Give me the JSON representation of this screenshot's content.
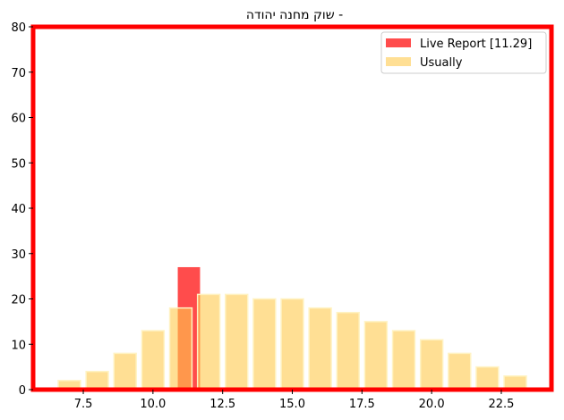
{
  "chart_data": {
    "type": "bar",
    "title": "שוק מחנה יהודה -",
    "xlabel": "",
    "ylabel": "",
    "xlim": [
      5.7,
      24.3
    ],
    "ylim": [
      0,
      80
    ],
    "x_ticks": [
      7.5,
      10.0,
      12.5,
      15.0,
      17.5,
      20.0,
      22.5
    ],
    "x_tick_labels": [
      "7.5",
      "10.0",
      "12.5",
      "15.0",
      "17.5",
      "20.0",
      "22.5"
    ],
    "y_ticks": [
      0,
      10,
      20,
      30,
      40,
      50,
      60,
      70,
      80
    ],
    "y_tick_labels": [
      "0",
      "10",
      "20",
      "30",
      "40",
      "50",
      "60",
      "70",
      "80"
    ],
    "legend_position": "top-right",
    "grid": false,
    "series": [
      {
        "name": "Live Report [11.29]",
        "color": "#ff0000",
        "opacity": 0.7,
        "bar_width": 0.8,
        "x": [
          11.29
        ],
        "values": [
          27
        ]
      },
      {
        "name": "Usually",
        "color": "#ffc94d",
        "opacity": 0.6,
        "bar_width": 0.8,
        "x": [
          7,
          8,
          9,
          10,
          11,
          12,
          13,
          14,
          15,
          16,
          17,
          18,
          19,
          20,
          21,
          22,
          23
        ],
        "values": [
          2,
          4,
          8,
          13,
          18,
          21,
          21,
          20,
          20,
          18,
          17,
          15,
          13,
          11,
          8,
          5,
          3
        ]
      }
    ]
  }
}
